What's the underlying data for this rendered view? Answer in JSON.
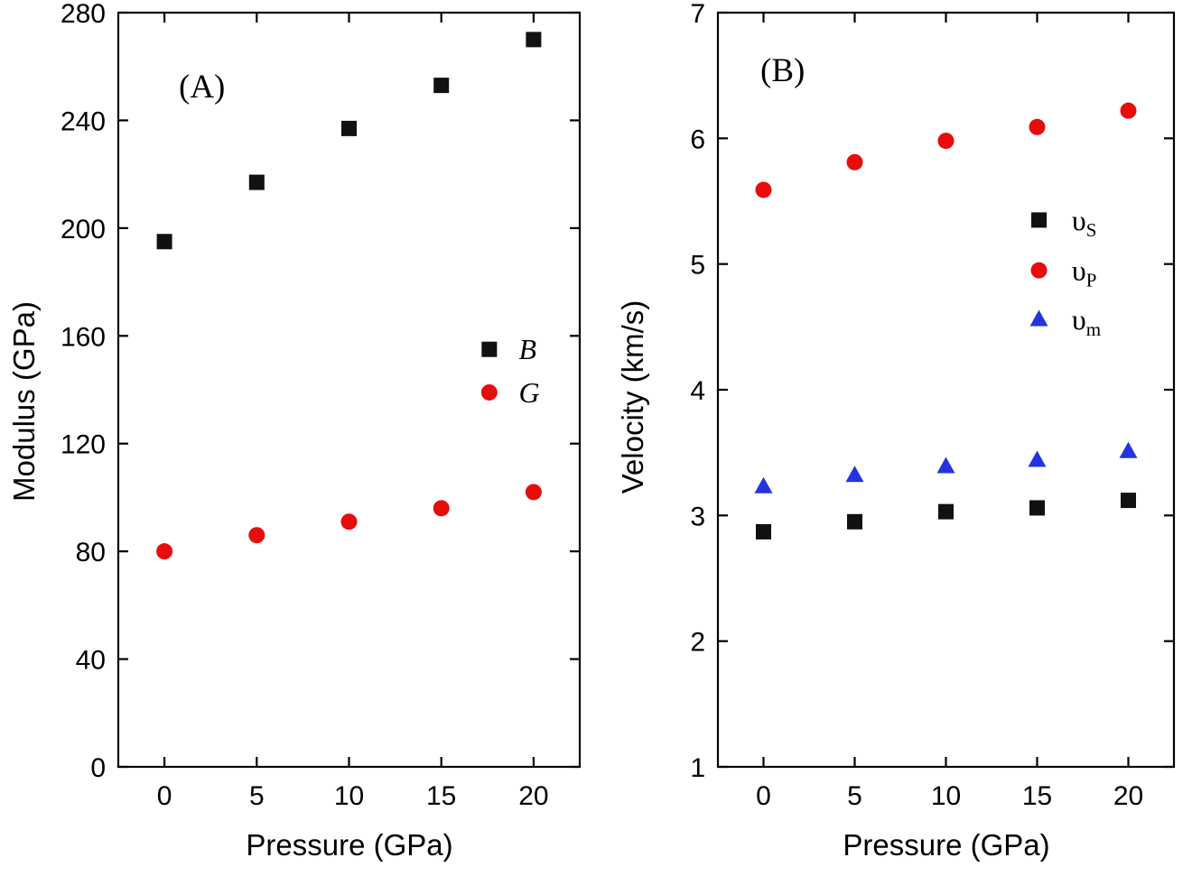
{
  "figure": {
    "background": "#ffffff",
    "axis_color": "#000000"
  },
  "chart_data": [
    {
      "type": "scatter",
      "panel_label": "(A)",
      "xlabel": "Pressure (GPa)",
      "ylabel": "Modulus (GPa)",
      "xlim": [
        -2.5,
        22.5
      ],
      "ylim": [
        0,
        280
      ],
      "xticks": [
        0,
        5,
        10,
        15,
        20
      ],
      "yticks": [
        0,
        40,
        80,
        120,
        160,
        200,
        240,
        280
      ],
      "grid": false,
      "x": [
        0,
        5,
        10,
        15,
        20
      ],
      "series": [
        {
          "name": "B",
          "label": "B",
          "sub": "",
          "marker": "square",
          "color": "#111111",
          "values": [
            195,
            217,
            237,
            253,
            270
          ]
        },
        {
          "name": "G",
          "label": "G",
          "sub": "",
          "marker": "circle",
          "color": "#e60d0d",
          "values": [
            80,
            86,
            91,
            96,
            102
          ]
        }
      ],
      "legend": {
        "position": "middle-right-inside",
        "italic": true,
        "x_marker": 17.6,
        "x_label": 19.2,
        "entries_y": [
          155,
          139
        ]
      }
    },
    {
      "type": "scatter",
      "panel_label": "(B)",
      "xlabel": "Pressure (GPa)",
      "ylabel": "Velocity (km/s)",
      "xlim": [
        -2.5,
        22.5
      ],
      "ylim": [
        1,
        7
      ],
      "xticks": [
        0,
        5,
        10,
        15,
        20
      ],
      "yticks": [
        1,
        2,
        3,
        4,
        5,
        6,
        7
      ],
      "grid": false,
      "x": [
        0,
        5,
        10,
        15,
        20
      ],
      "series": [
        {
          "name": "vS",
          "label": "υ",
          "sub": "S",
          "marker": "square",
          "color": "#111111",
          "values": [
            2.87,
            2.95,
            3.03,
            3.06,
            3.12
          ]
        },
        {
          "name": "vP",
          "label": "υ",
          "sub": "P",
          "marker": "circle",
          "color": "#e60d0d",
          "values": [
            5.59,
            5.81,
            5.98,
            6.09,
            6.22
          ]
        },
        {
          "name": "vm",
          "label": "υ",
          "sub": "m",
          "marker": "triangle",
          "color": "#2433dd",
          "values": [
            3.23,
            3.32,
            3.39,
            3.44,
            3.51
          ]
        }
      ],
      "legend": {
        "position": "upper-middle-inside",
        "italic": false,
        "x_marker": 15.1,
        "x_label": 16.9,
        "entries_y": [
          5.35,
          4.95,
          4.56
        ]
      }
    }
  ]
}
